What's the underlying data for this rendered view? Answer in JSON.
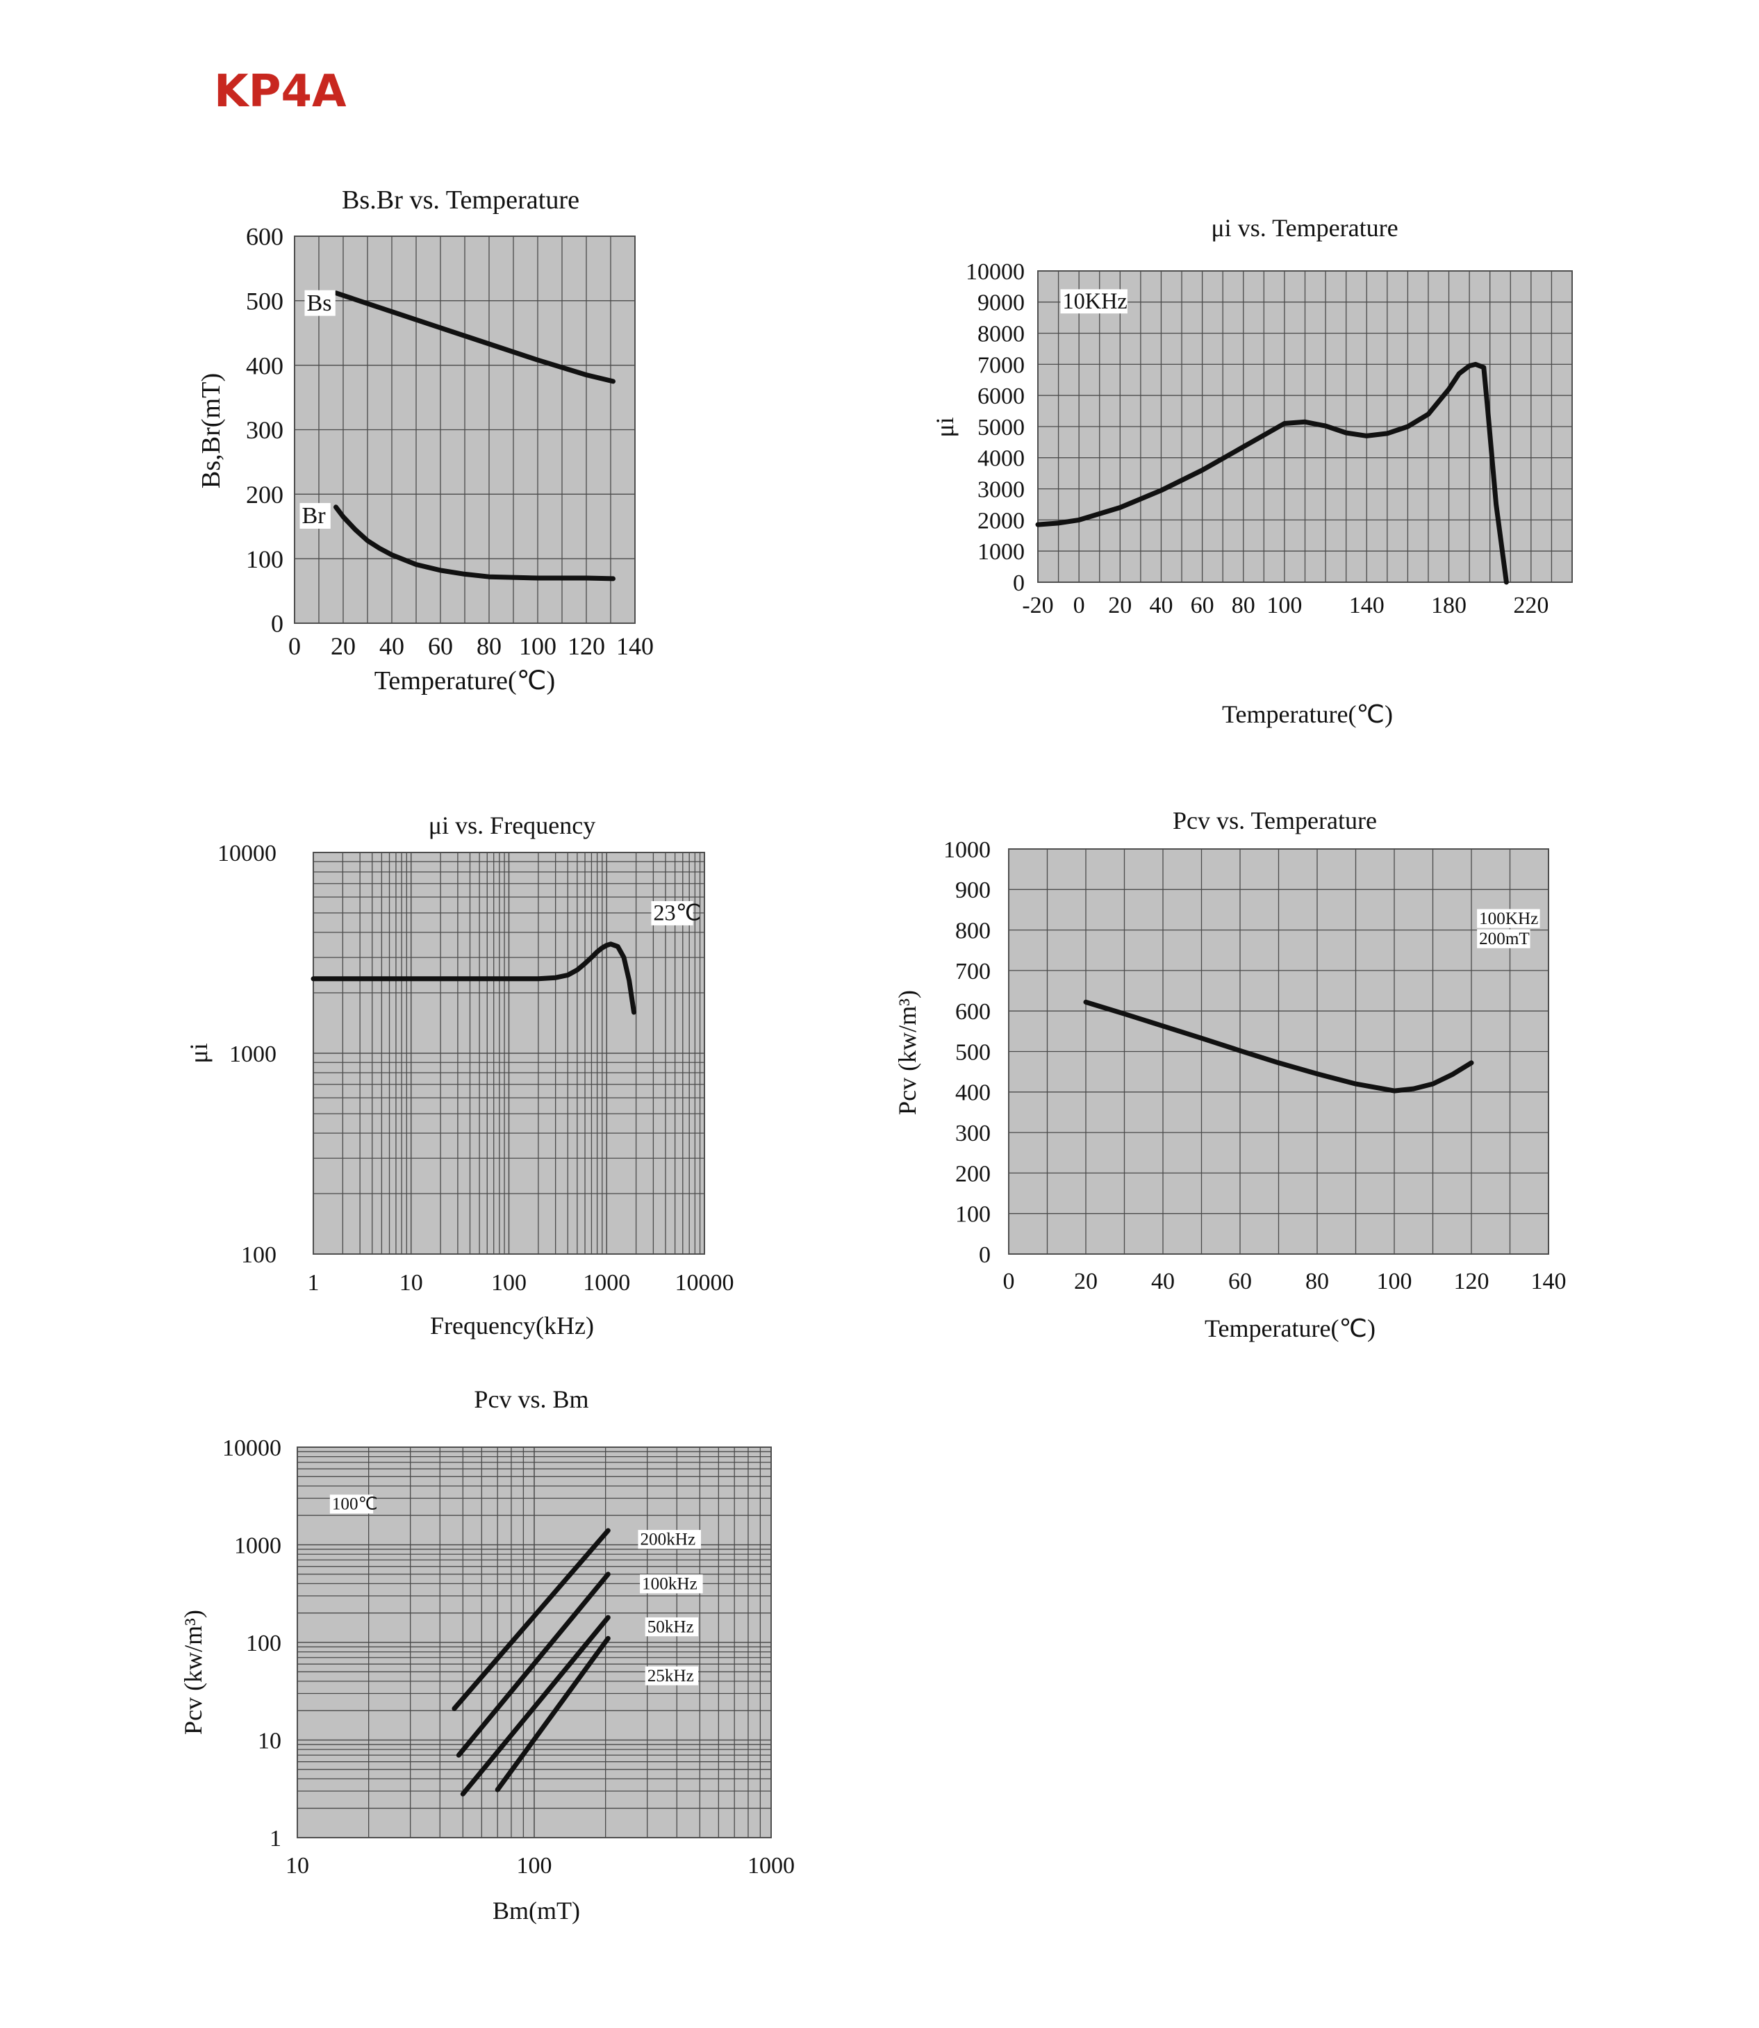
{
  "page": {
    "title": "KP4A"
  },
  "chart_data": [
    {
      "id": "c1",
      "type": "line",
      "title": "Bs.Br  vs. Temperature",
      "xlabel": "Temperature(℃)",
      "ylabel": "Bs,Br(mT)",
      "xscale": "linear",
      "yscale": "linear",
      "xlim": [
        0,
        140
      ],
      "ylim": [
        0,
        600
      ],
      "xticks": [
        0,
        20,
        40,
        60,
        80,
        100,
        120,
        140
      ],
      "xticklabels": [
        "0",
        "20",
        "40",
        "60",
        "80",
        "100",
        "120",
        "140"
      ],
      "yticks": [
        0,
        100,
        200,
        300,
        400,
        500,
        600
      ],
      "yticklabels": [
        "0",
        "100",
        "200",
        "300",
        "400",
        "500",
        "600"
      ],
      "grid": true,
      "series": [
        {
          "name": "Bs",
          "x": [
            17,
            40,
            60,
            80,
            100,
            120,
            131
          ],
          "y": [
            512,
            483,
            458,
            433,
            408,
            385,
            375
          ]
        },
        {
          "name": "Br",
          "x": [
            17,
            20,
            25,
            30,
            35,
            40,
            50,
            60,
            70,
            80,
            90,
            100,
            110,
            120,
            131
          ],
          "y": [
            180,
            165,
            145,
            128,
            116,
            106,
            91,
            82,
            76,
            72,
            71,
            70,
            70,
            70,
            69
          ]
        }
      ],
      "annotations": [
        {
          "text": "Bs",
          "x": 5,
          "y": 485
        },
        {
          "text": "Br",
          "x": 3,
          "y": 155
        }
      ]
    },
    {
      "id": "c2",
      "type": "line",
      "title": "μi  vs.    Temperature",
      "xlabel": "Temperature(℃)",
      "ylabel": "μi",
      "xscale": "linear",
      "yscale": "linear",
      "xlim": [
        -20,
        240
      ],
      "ylim": [
        0,
        10000
      ],
      "xticks": [
        -20,
        0,
        20,
        40,
        60,
        80,
        100,
        140,
        180,
        220
      ],
      "xticklabels": [
        "-20",
        "0",
        "20",
        "40",
        "60",
        "80",
        "100",
        "140",
        "180",
        "220"
      ],
      "yticks": [
        0,
        1000,
        2000,
        3000,
        4000,
        5000,
        6000,
        7000,
        8000,
        9000,
        10000
      ],
      "yticklabels": [
        "0",
        "1000",
        "2000",
        "3000",
        "4000",
        "5000",
        "6000",
        "7000",
        "8000",
        "9000",
        "10000"
      ],
      "grid": true,
      "series": [
        {
          "name": "",
          "x": [
            -20,
            -10,
            0,
            20,
            40,
            60,
            80,
            100,
            110,
            120,
            130,
            140,
            150,
            160,
            170,
            180,
            185,
            190,
            193,
            197,
            199,
            203,
            208
          ],
          "y": [
            1850,
            1900,
            2000,
            2400,
            2950,
            3600,
            4350,
            5100,
            5150,
            5020,
            4800,
            4700,
            4780,
            5000,
            5400,
            6200,
            6700,
            6950,
            7000,
            6900,
            5500,
            2500,
            0
          ]
        }
      ],
      "annotations": [
        {
          "text": "10KHz",
          "x": -8,
          "y": 8800
        }
      ]
    },
    {
      "id": "c3",
      "type": "line",
      "title": "μi  vs.  Frequency",
      "xlabel": "Frequency(kHz)",
      "ylabel": "μi",
      "xscale": "log",
      "yscale": "log",
      "xlim": [
        1,
        10000
      ],
      "ylim": [
        100,
        10000
      ],
      "xticks": [
        1,
        10,
        100,
        1000,
        10000
      ],
      "xticklabels": [
        "1",
        "10",
        "100",
        "1000",
        "10000"
      ],
      "yticks": [
        100,
        1000,
        10000
      ],
      "yticklabels": [
        "100",
        "1000",
        "10000"
      ],
      "grid": true,
      "series": [
        {
          "name": "",
          "x": [
            1,
            10,
            100,
            200,
            300,
            400,
            500,
            600,
            700,
            800,
            900,
            1000,
            1100,
            1300,
            1500,
            1700,
            1900
          ],
          "y": [
            2350,
            2350,
            2350,
            2350,
            2380,
            2450,
            2600,
            2800,
            3000,
            3200,
            3350,
            3450,
            3500,
            3400,
            3000,
            2300,
            1600
          ]
        }
      ],
      "annotations": [
        {
          "text": "23℃",
          "x": 3000,
          "y": 4600
        }
      ]
    },
    {
      "id": "c4",
      "type": "line",
      "title": "Pcv vs.  Temperature",
      "xlabel": "Temperature(℃)",
      "ylabel": "Pcv (kw/m³)",
      "xscale": "linear",
      "yscale": "linear",
      "xlim": [
        0,
        140
      ],
      "ylim": [
        0,
        1000
      ],
      "xticks": [
        0,
        20,
        40,
        60,
        80,
        100,
        120,
        140
      ],
      "xticklabels": [
        "0",
        "20",
        "40",
        "60",
        "80",
        "100",
        "120",
        "140"
      ],
      "yticks": [
        0,
        100,
        200,
        300,
        400,
        500,
        600,
        700,
        800,
        900,
        1000
      ],
      "yticklabels": [
        "0",
        "100",
        "200",
        "300",
        "400",
        "500",
        "600",
        "700",
        "800",
        "900",
        "1000"
      ],
      "grid": true,
      "series": [
        {
          "name": "",
          "x": [
            20,
            30,
            40,
            50,
            60,
            70,
            80,
            90,
            100,
            105,
            110,
            115,
            120
          ],
          "y": [
            622,
            593,
            563,
            533,
            502,
            472,
            445,
            420,
            403,
            408,
            420,
            443,
            472
          ]
        }
      ],
      "annotations": [
        {
          "text": "100KHz",
          "x": 122,
          "y": 815
        },
        {
          "text": "200mT",
          "x": 122,
          "y": 765
        }
      ]
    },
    {
      "id": "c5",
      "type": "line",
      "title": "Pcv   vs.  Bm",
      "xlabel": "Bm(mT)",
      "ylabel": "Pcv (kw/m³)",
      "xscale": "log",
      "yscale": "log",
      "xlim": [
        10,
        1000
      ],
      "ylim": [
        1,
        10000
      ],
      "xticks": [
        10,
        100,
        1000
      ],
      "xticklabels": [
        "10",
        "100",
        "1000"
      ],
      "yticks": [
        1,
        10,
        100,
        1000,
        10000
      ],
      "yticklabels": [
        "1",
        "10",
        "100",
        "1000",
        "10000"
      ],
      "grid": true,
      "series": [
        {
          "name": "200kHz",
          "x": [
            46,
            205
          ],
          "y": [
            21,
            1400
          ]
        },
        {
          "name": "100kHz",
          "x": [
            48,
            205
          ],
          "y": [
            7,
            500
          ]
        },
        {
          "name": "50kHz",
          "x": [
            50,
            205
          ],
          "y": [
            2.8,
            180
          ]
        },
        {
          "name": "25kHz",
          "x": [
            70,
            205
          ],
          "y": [
            3.1,
            110
          ]
        }
      ],
      "annotations": [
        {
          "text": "100℃",
          "x": 14,
          "y": 2300
        },
        {
          "text": "200kHz",
          "x": 280,
          "y": 1000
        },
        {
          "text": "100kHz",
          "x": 285,
          "y": 350
        },
        {
          "text": "50kHz",
          "x": 300,
          "y": 127
        },
        {
          "text": "25kHz",
          "x": 300,
          "y": 40
        }
      ]
    }
  ]
}
